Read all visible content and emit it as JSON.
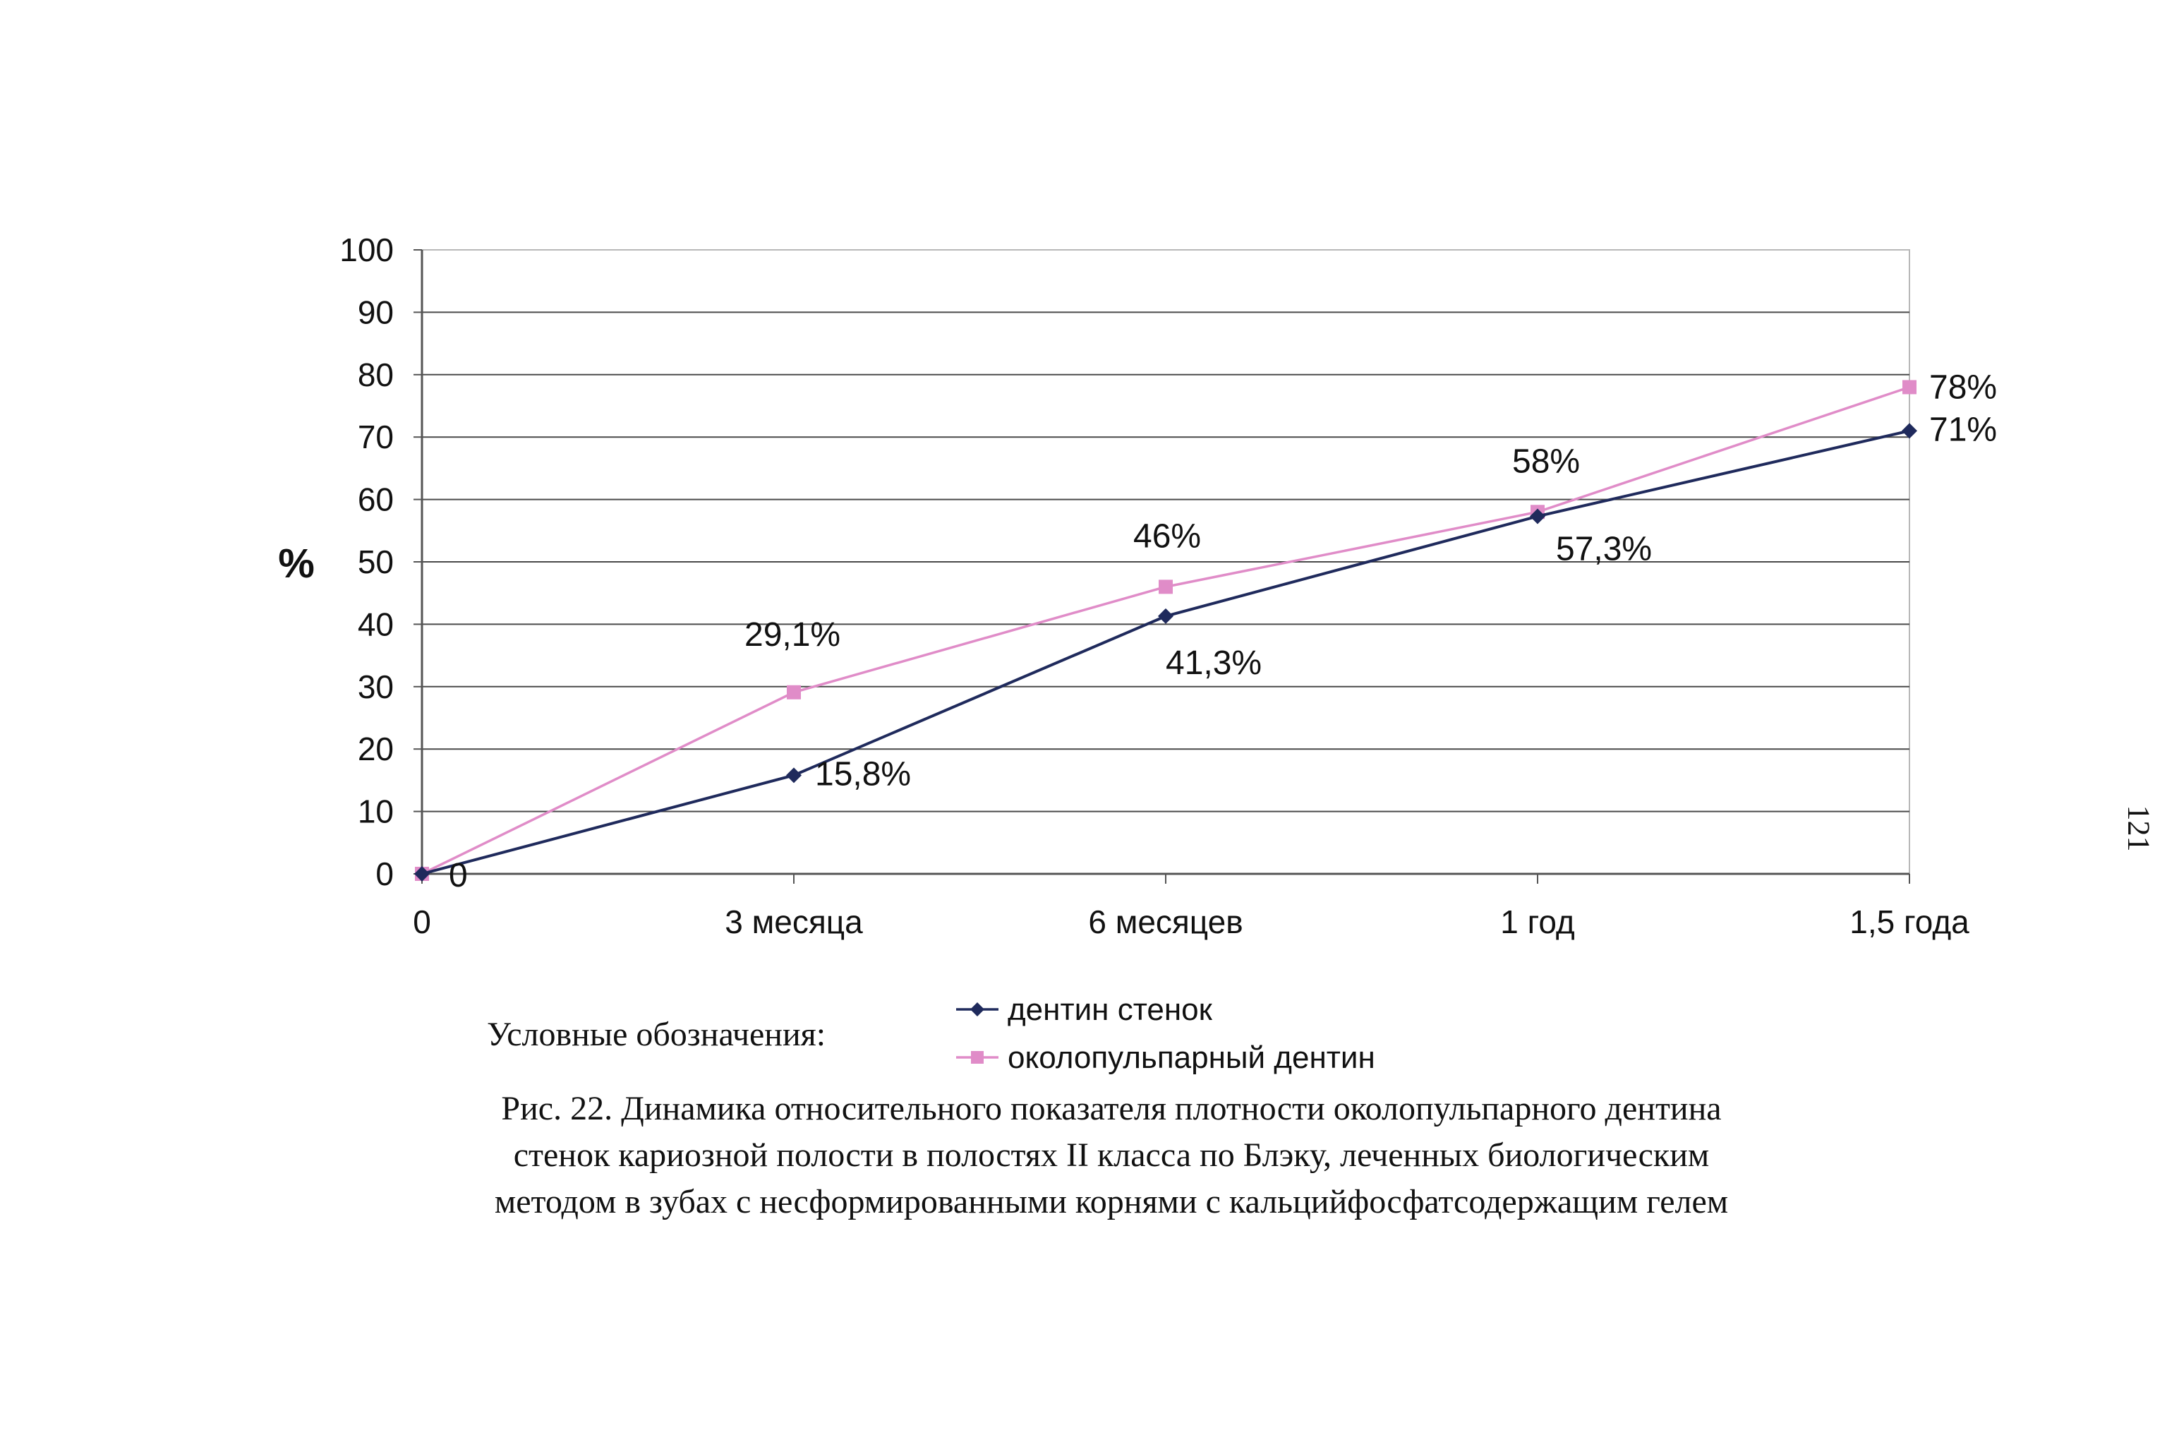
{
  "chart_data": {
    "type": "line",
    "title": "",
    "xlabel": "",
    "ylabel": "%",
    "ylim": [
      0,
      100
    ],
    "yticks": [
      "0",
      "10",
      "20",
      "30",
      "40",
      "50",
      "60",
      "70",
      "80",
      "90",
      "100"
    ],
    "categories": [
      "0",
      "3 месяца",
      "6 месяцев",
      "1 год",
      "1,5 года"
    ],
    "grid": true,
    "legend_position": "bottom",
    "series": [
      {
        "name": "дентин стенок",
        "values": [
          0,
          15.8,
          41.3,
          57.3,
          71
        ],
        "labels": [
          "0",
          "15,8%",
          "41,3%",
          "57,3%",
          "71%"
        ],
        "color": "#1f2a5c",
        "marker": "diamond"
      },
      {
        "name": "околопульпарный дентин",
        "values": [
          0,
          29.1,
          46,
          58,
          78
        ],
        "labels": [
          "",
          "29,1%",
          "46%",
          "58%",
          "78%"
        ],
        "color": "#e08cc8",
        "marker": "square"
      }
    ]
  },
  "legend_caption": "Условные обозначения:",
  "figure_caption": [
    "Рис. 22.  Динамика относительного показателя плотности околопульпарного дентина",
    "стенок кариозной полости в полостях II класса по Блэку, леченных биологическим",
    "методом в зубах с несформированными корнями с кальцийфосфатсодержащим гелем"
  ],
  "page_number": "121"
}
